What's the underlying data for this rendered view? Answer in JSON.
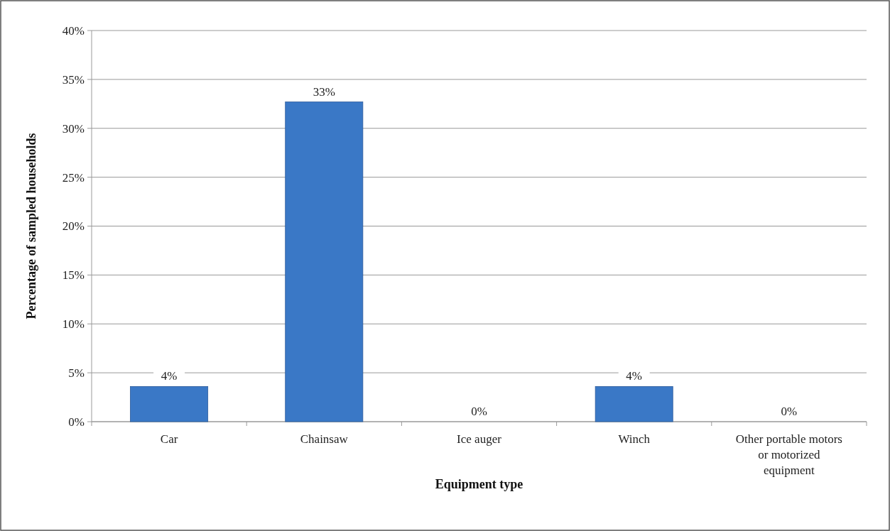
{
  "chart_data": {
    "type": "bar",
    "xlabel": "Equipment type",
    "ylabel": "Percentage of sampled households",
    "categories": [
      "Car",
      "Chainsaw",
      "Ice auger",
      "Winch",
      "Other portable motors or motorized equipment"
    ],
    "values": [
      3.6,
      32.7,
      0,
      3.6,
      0
    ],
    "value_labels": [
      "4%",
      "33%",
      "0%",
      "4%",
      "0%"
    ],
    "color": "#3a78c6",
    "ylim": [
      0,
      40
    ],
    "yticks": [
      {
        "value": 0,
        "label": "0%"
      },
      {
        "value": 5,
        "label": "5%"
      },
      {
        "value": 10,
        "label": "10%"
      },
      {
        "value": 15,
        "label": "15%"
      },
      {
        "value": 20,
        "label": "20%"
      },
      {
        "value": 25,
        "label": "25%"
      },
      {
        "value": 30,
        "label": "30%"
      },
      {
        "value": 35,
        "label": "35%"
      },
      {
        "value": 40,
        "label": "40%"
      }
    ],
    "grid": "y"
  }
}
